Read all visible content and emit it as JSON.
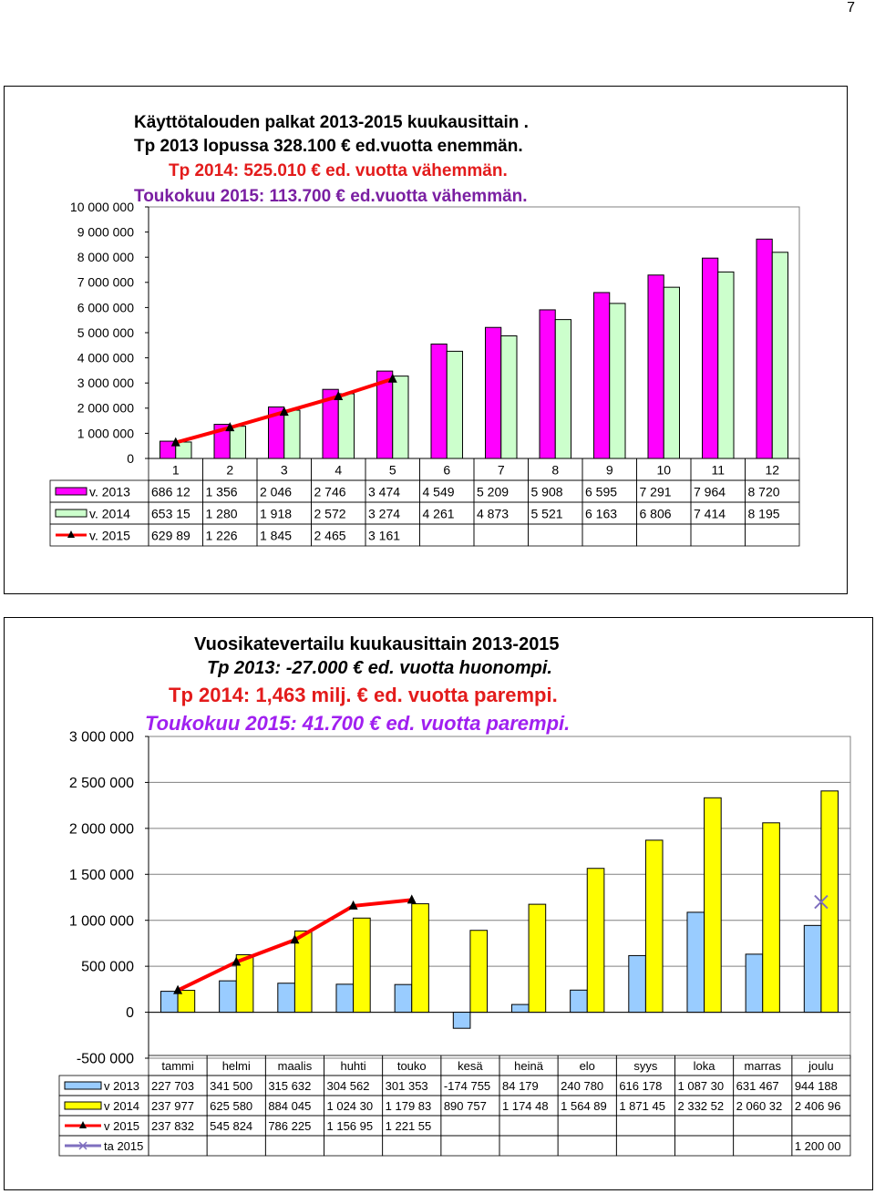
{
  "page": {
    "number": "7"
  },
  "chart1": {
    "titles": [
      {
        "text": "Käyttötalouden  palkat 2013-2015 kuukausittain .",
        "color": "#000000",
        "italic": false
      },
      {
        "text": "Tp  2013 lopussa 328.100 € ed.vuotta enemmän.",
        "color": "#000000",
        "italic": false
      },
      {
        "text": "Tp 2014: 525.010 € ed. vuotta vähemmän.",
        "color": "#e31b1b",
        "italic": false
      },
      {
        "text": "Toukokuu 2015: 113.700 € ed.vuotta vähemmän.",
        "color": "#7a1fa2",
        "italic": false
      }
    ],
    "y_ticks": [
      "10 000 000",
      "9 000 000",
      "8 000 000",
      "7 000 000",
      "6 000 000",
      "5 000 000",
      "4 000 000",
      "3 000 000",
      "2 000 000",
      "1 000 000",
      "0"
    ],
    "table": [
      {
        "label": "v. 2013",
        "cells": [
          "686 12",
          "1 356",
          "2 046",
          "2 746",
          "3 474",
          "4 549",
          "5 209",
          "5 908",
          "6 595",
          "7 291",
          "7 964",
          "8 720"
        ]
      },
      {
        "label": "v. 2014",
        "cells": [
          "653 15",
          "1 280",
          "1 918",
          "2 572",
          "3 274",
          "4 261",
          "4 873",
          "5 521",
          "6 163",
          "6 806",
          "7 414",
          "8 195"
        ]
      },
      {
        "label": "v. 2015",
        "cells": [
          "629 89",
          "1 226",
          "1 845",
          "2 465",
          "3 161",
          "",
          "",
          "",
          "",
          "",
          "",
          ""
        ]
      }
    ]
  },
  "chart2": {
    "titles": [
      {
        "text": "Vuosikatevertailu kuukausittain 2013-2015",
        "color": "#000000",
        "italic": false
      },
      {
        "text": "Tp 2013: -27.000 € ed. vuotta huonompi.",
        "color": "#000000",
        "italic": true
      },
      {
        "text": "Tp 2014: 1,463 milj. € ed. vuotta parempi.",
        "color": "#e31b1b",
        "italic": false
      },
      {
        "text": "Toukokuu 2015: 41.700 € ed. vuotta parempi.",
        "color": "#a020f0",
        "italic": true
      }
    ],
    "y_ticks": [
      "3 000 000",
      "2 500 000",
      "2 000 000",
      "1 500 000",
      "1 000 000",
      "500 000",
      "0",
      "-500 000"
    ],
    "table": [
      {
        "label": "v 2013",
        "cells": [
          "227 703",
          "341 500",
          "315 632",
          "304 562",
          "301 353",
          "-174 755",
          "84 179",
          "240 780",
          "616 178",
          "1 087 30",
          "631 467",
          "944 188"
        ]
      },
      {
        "label": "v 2014",
        "cells": [
          "237 977",
          "625 580",
          "884 045",
          "1 024 30",
          "1 179 83",
          "890 757",
          "1 174 48",
          "1 564 89",
          "1 871 45",
          "2 332 52",
          "2 060 32",
          "2 406 96"
        ]
      },
      {
        "label": "v 2015",
        "cells": [
          "237 832",
          "545 824",
          "786 225",
          "1 156 95",
          "1 221 55",
          "",
          "",
          "",
          "",
          "",
          "",
          ""
        ]
      },
      {
        "label": "ta 2015",
        "cells": [
          "",
          "",
          "",
          "",
          "",
          "",
          "",
          "",
          "",
          "",
          "",
          "1 200 00"
        ]
      }
    ]
  },
  "chart_data": [
    {
      "type": "bar",
      "categories": [
        "1",
        "2",
        "3",
        "4",
        "5",
        "6",
        "7",
        "8",
        "9",
        "10",
        "11",
        "12"
      ],
      "ylim": [
        0,
        10000000
      ],
      "grid": false,
      "legend": "table-below",
      "series": [
        {
          "name": "v. 2013",
          "kind": "bar",
          "color": "#ff00ff",
          "values": [
            686120,
            1356000,
            2046000,
            2746000,
            3474000,
            4549000,
            5209000,
            5908000,
            6595000,
            7291000,
            7964000,
            8720000
          ]
        },
        {
          "name": "v. 2014",
          "kind": "bar",
          "color": "#ccffcc",
          "values": [
            653150,
            1280000,
            1918000,
            2572000,
            3274000,
            4261000,
            4873000,
            5521000,
            6163000,
            6806000,
            7414000,
            8195000
          ]
        },
        {
          "name": "v. 2015",
          "kind": "line",
          "color": "#ff0000",
          "values": [
            629890,
            1226000,
            1845000,
            2465000,
            3161000,
            null,
            null,
            null,
            null,
            null,
            null,
            null
          ]
        }
      ]
    },
    {
      "type": "bar",
      "categories": [
        "tammi",
        "helmi",
        "maalis",
        "huhti",
        "touko",
        "kesä",
        "heinä",
        "elo",
        "syys",
        "loka",
        "marras",
        "joulu"
      ],
      "ylim": [
        -500000,
        3000000
      ],
      "grid": true,
      "legend": "table-below",
      "series": [
        {
          "name": "v 2013",
          "kind": "bar",
          "color": "#99ccff",
          "values": [
            227703,
            341500,
            315632,
            304562,
            301353,
            -174755,
            84179,
            240780,
            616178,
            1087300,
            631467,
            944188
          ]
        },
        {
          "name": "v 2014",
          "kind": "bar",
          "color": "#ffff00",
          "values": [
            237977,
            625580,
            884045,
            1024300,
            1179830,
            890757,
            1174480,
            1564890,
            1871450,
            2332520,
            2060320,
            2406960
          ]
        },
        {
          "name": "v 2015",
          "kind": "line",
          "color": "#ff0000",
          "values": [
            237832,
            545824,
            786225,
            1156950,
            1221550,
            null,
            null,
            null,
            null,
            null,
            null,
            null
          ]
        },
        {
          "name": "ta 2015",
          "kind": "marker",
          "color": "#7f6fbf",
          "values": [
            null,
            null,
            null,
            null,
            null,
            null,
            null,
            null,
            null,
            null,
            null,
            1200000
          ]
        }
      ]
    }
  ]
}
